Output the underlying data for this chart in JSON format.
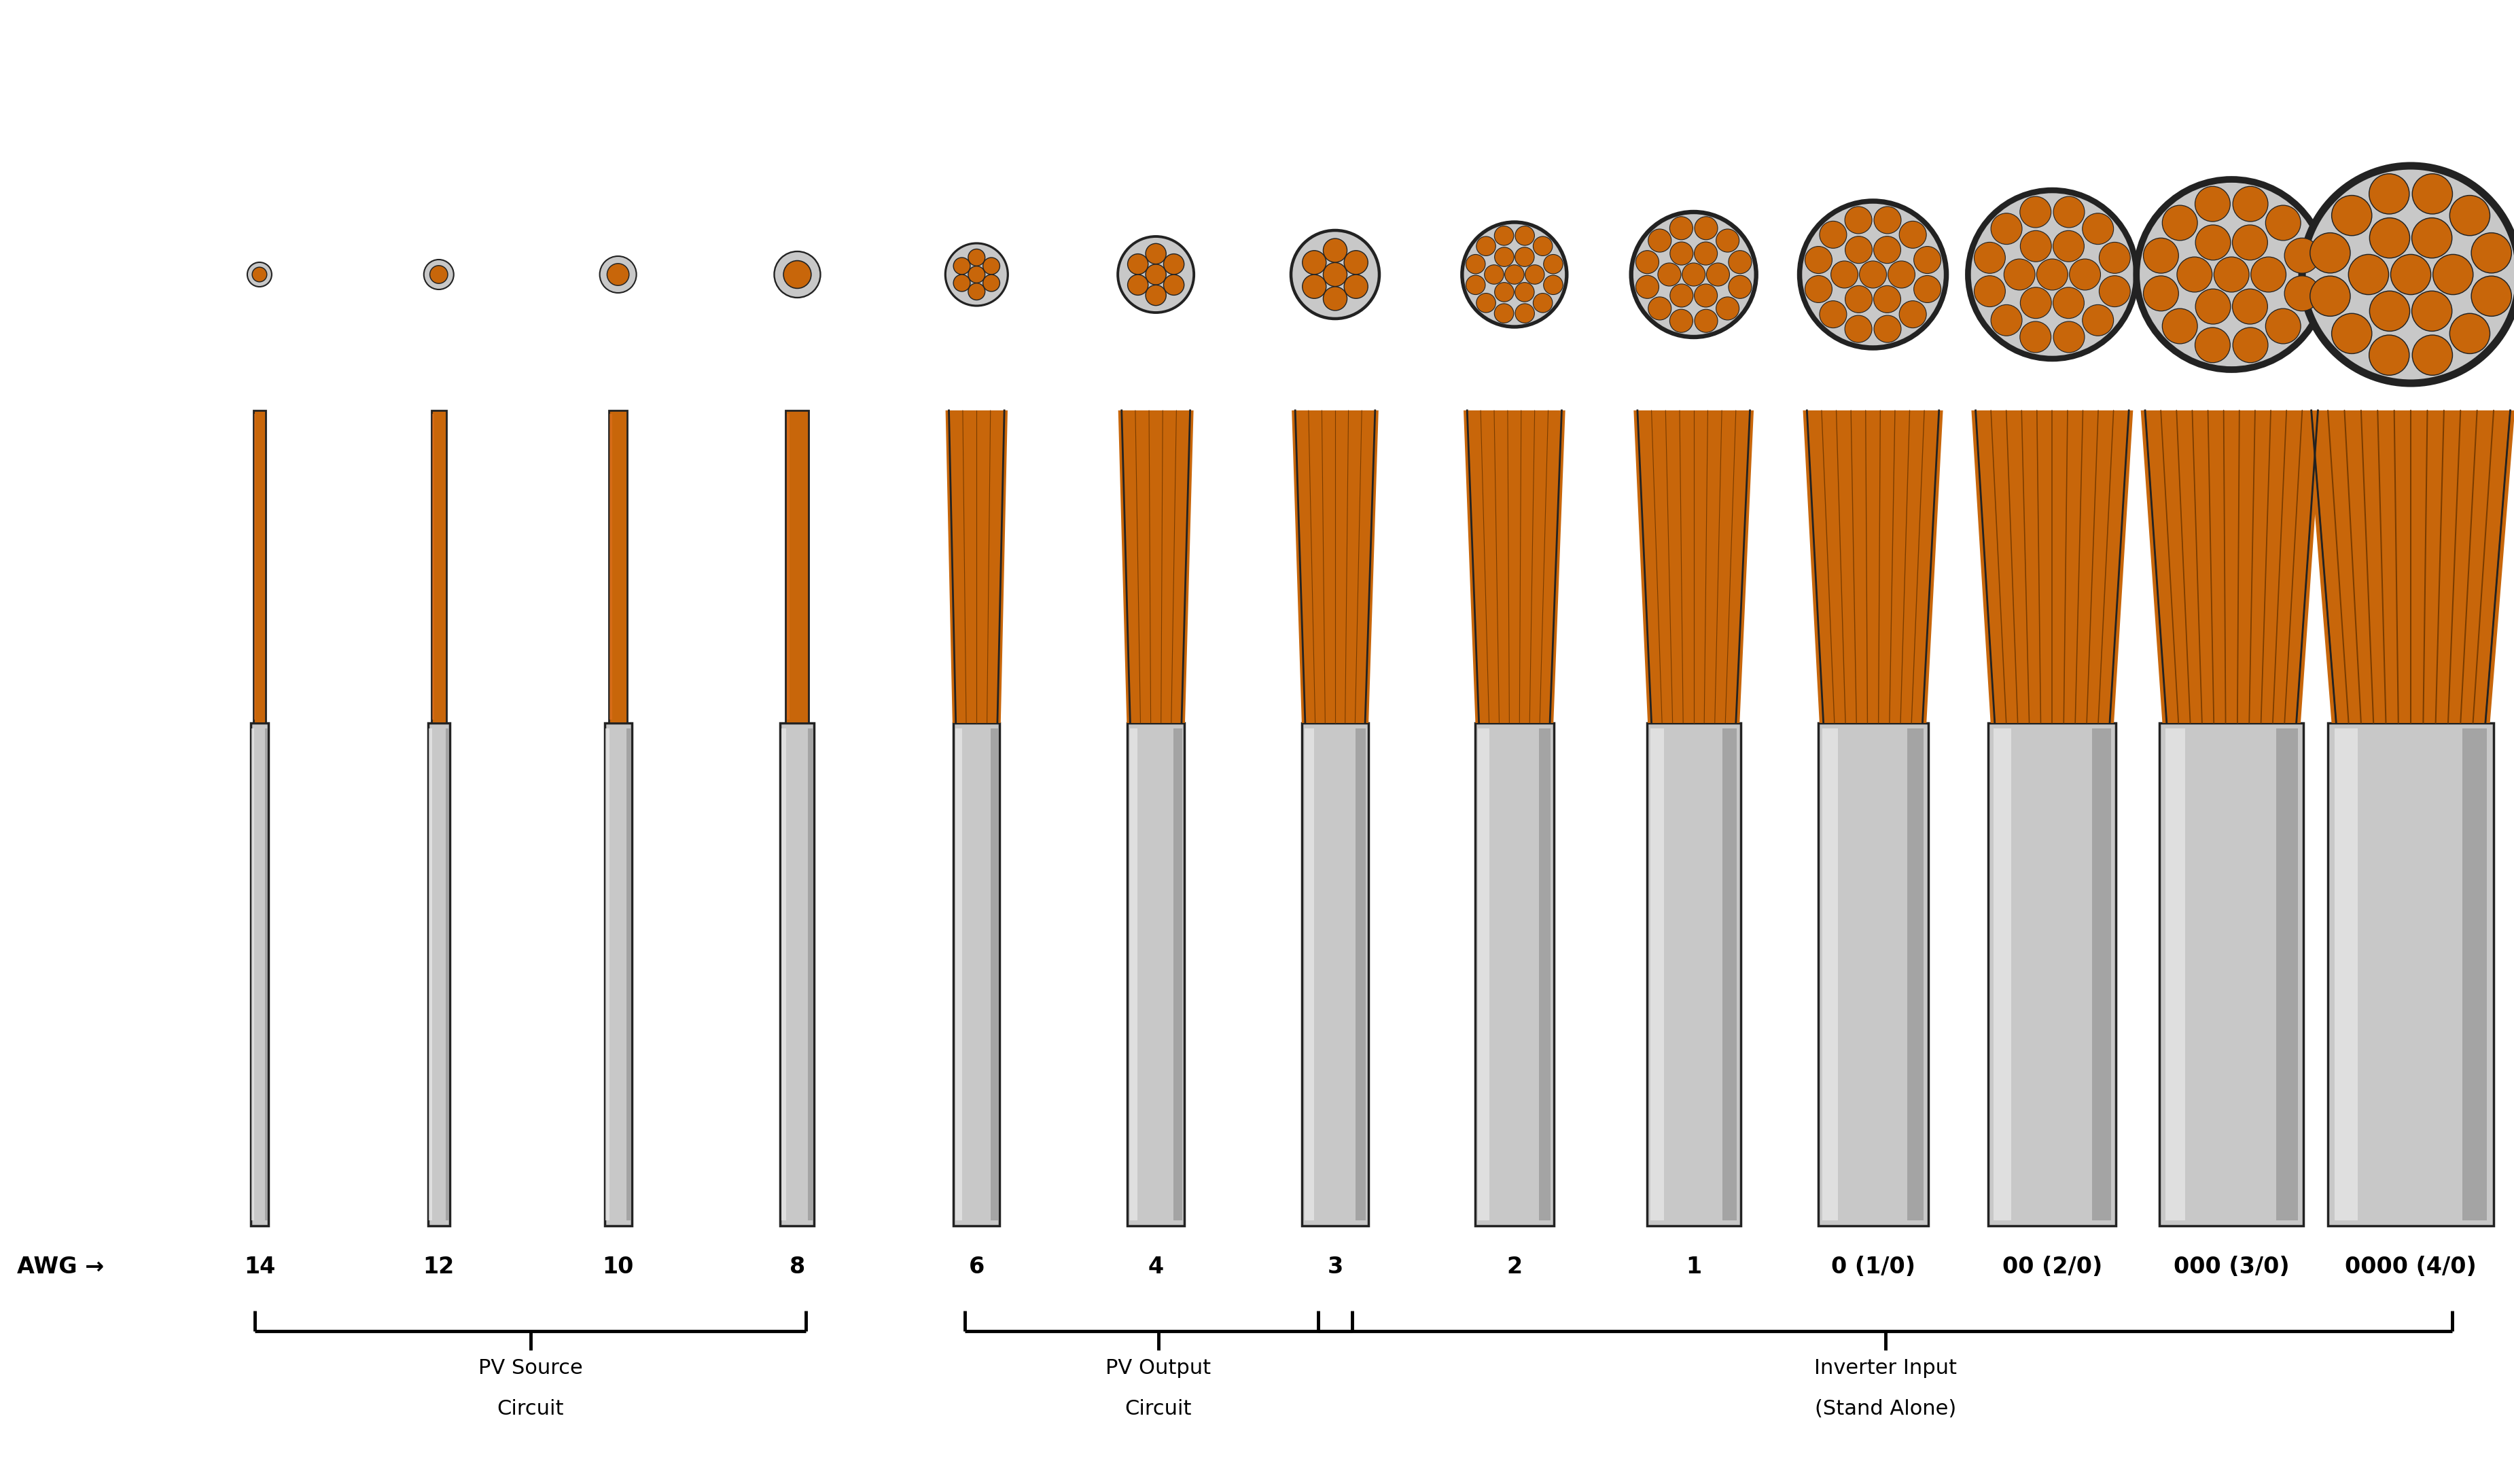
{
  "background_color": "#ffffff",
  "copper_color": "#c8660a",
  "copper_dark": "#7a3c00",
  "insulation_color": "#c8c8c8",
  "insulation_light": "#e8e8e8",
  "insulation_dark": "#888888",
  "outline_color": "#222222",
  "awg_labels": [
    "14",
    "12",
    "10",
    "8",
    "6",
    "4",
    "3",
    "2",
    "1",
    "0 (1/0)",
    "00 (2/0)",
    "000 (3/0)",
    "0000 (4/0)"
  ],
  "num_strands": [
    1,
    1,
    1,
    1,
    7,
    7,
    7,
    19,
    19,
    19,
    19,
    19,
    19
  ],
  "strand_draw_counts": [
    1,
    1,
    1,
    1,
    5,
    6,
    7,
    8,
    9,
    10,
    11,
    12,
    13
  ],
  "cs_outer_r": [
    0.18,
    0.22,
    0.27,
    0.34,
    0.46,
    0.56,
    0.65,
    0.77,
    0.92,
    1.08,
    1.24,
    1.4,
    1.6
  ],
  "cab_half_w": [
    0.13,
    0.16,
    0.2,
    0.25,
    0.34,
    0.42,
    0.49,
    0.58,
    0.69,
    0.81,
    0.94,
    1.06,
    1.22
  ],
  "awg_label_prefix": "AWG →",
  "pv_source_indices": [
    0,
    3
  ],
  "pv_output_indices": [
    4,
    6
  ],
  "inverter_indices": [
    6,
    12
  ]
}
